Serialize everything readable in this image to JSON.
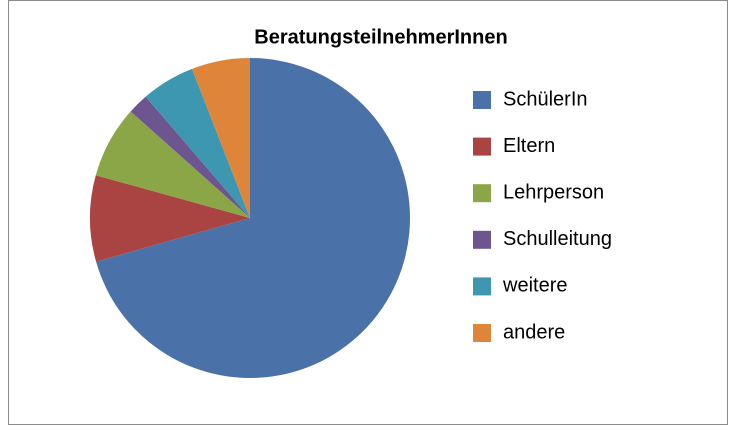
{
  "chart_data": {
    "type": "pie",
    "title": "BeratungsteilnehmerInnen",
    "categories": [
      "SchülerIn",
      "Eltern",
      "Lehrperson",
      "Schulleitung",
      "weitere",
      "andere"
    ],
    "values": [
      70.6,
      8.7,
      7.3,
      2.1,
      5.4,
      5.9
    ],
    "colors": [
      "#4a72a8",
      "#a94442",
      "#8aa646",
      "#6d5690",
      "#3d97b0",
      "#de8539"
    ],
    "legend": "right"
  }
}
